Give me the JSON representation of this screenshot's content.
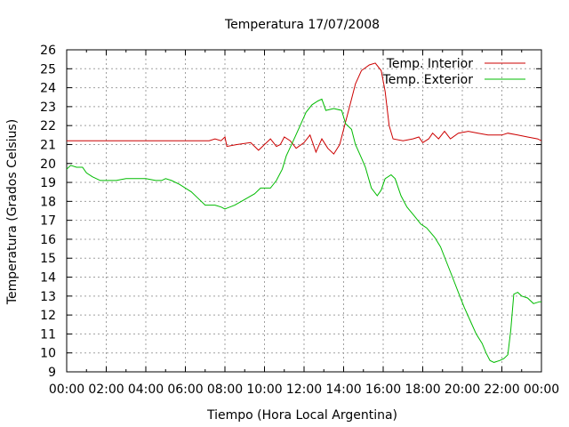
{
  "chart_data": {
    "type": "line",
    "title": "Temperatura 17/07/2008",
    "xlabel": "Tiempo (Hora Local Argentina)",
    "ylabel": "Temperatura (Grados Celsius)",
    "xlim": [
      0,
      24
    ],
    "ylim": [
      9,
      26
    ],
    "x_ticks": [
      "00:00",
      "02:00",
      "04:00",
      "06:00",
      "08:00",
      "10:00",
      "12:00",
      "14:00",
      "16:00",
      "18:00",
      "20:00",
      "22:00",
      "00:00"
    ],
    "y_ticks": [
      "9",
      "10",
      "11",
      "12",
      "13",
      "14",
      "15",
      "16",
      "17",
      "18",
      "19",
      "20",
      "21",
      "22",
      "23",
      "24",
      "25",
      "26"
    ],
    "grid": true,
    "legend_position": "top-right",
    "series": [
      {
        "name": "Temp. Interior",
        "color": "#cc0000",
        "points": [
          [
            0,
            21.2
          ],
          [
            2,
            21.2
          ],
          [
            4,
            21.2
          ],
          [
            6,
            21.2
          ],
          [
            7.2,
            21.2
          ],
          [
            7.5,
            21.3
          ],
          [
            7.8,
            21.2
          ],
          [
            8.0,
            21.4
          ],
          [
            8.1,
            20.9
          ],
          [
            8.6,
            21.0
          ],
          [
            9.3,
            21.1
          ],
          [
            9.7,
            20.7
          ],
          [
            10.0,
            21.0
          ],
          [
            10.3,
            21.3
          ],
          [
            10.6,
            20.9
          ],
          [
            10.8,
            21.0
          ],
          [
            11.0,
            21.4
          ],
          [
            11.3,
            21.2
          ],
          [
            11.6,
            20.8
          ],
          [
            12.0,
            21.1
          ],
          [
            12.3,
            21.5
          ],
          [
            12.6,
            20.6
          ],
          [
            12.9,
            21.3
          ],
          [
            13.2,
            20.8
          ],
          [
            13.5,
            20.5
          ],
          [
            13.8,
            21.0
          ],
          [
            14.0,
            21.8
          ],
          [
            14.3,
            23.0
          ],
          [
            14.6,
            24.2
          ],
          [
            14.9,
            24.9
          ],
          [
            15.3,
            25.2
          ],
          [
            15.6,
            25.3
          ],
          [
            15.9,
            24.9
          ],
          [
            16.1,
            23.8
          ],
          [
            16.3,
            22.0
          ],
          [
            16.5,
            21.3
          ],
          [
            17.0,
            21.2
          ],
          [
            17.5,
            21.3
          ],
          [
            17.8,
            21.4
          ],
          [
            18.0,
            21.1
          ],
          [
            18.3,
            21.3
          ],
          [
            18.5,
            21.6
          ],
          [
            18.8,
            21.3
          ],
          [
            19.1,
            21.7
          ],
          [
            19.4,
            21.3
          ],
          [
            19.8,
            21.6
          ],
          [
            20.3,
            21.7
          ],
          [
            20.8,
            21.6
          ],
          [
            21.3,
            21.5
          ],
          [
            22.0,
            21.5
          ],
          [
            22.3,
            21.6
          ],
          [
            22.8,
            21.5
          ],
          [
            23.3,
            21.4
          ],
          [
            23.8,
            21.3
          ],
          [
            24,
            21.2
          ]
        ]
      },
      {
        "name": "Temp. Exterior",
        "color": "#00bb00",
        "points": [
          [
            0,
            19.7
          ],
          [
            0.2,
            19.9
          ],
          [
            0.5,
            19.8
          ],
          [
            0.8,
            19.8
          ],
          [
            1.0,
            19.5
          ],
          [
            1.3,
            19.3
          ],
          [
            1.7,
            19.1
          ],
          [
            2.0,
            19.1
          ],
          [
            2.5,
            19.1
          ],
          [
            3.0,
            19.2
          ],
          [
            3.5,
            19.2
          ],
          [
            4.0,
            19.2
          ],
          [
            4.5,
            19.1
          ],
          [
            4.8,
            19.1
          ],
          [
            5.0,
            19.2
          ],
          [
            5.3,
            19.1
          ],
          [
            5.7,
            18.9
          ],
          [
            6.0,
            18.7
          ],
          [
            6.3,
            18.5
          ],
          [
            6.7,
            18.1
          ],
          [
            7.0,
            17.8
          ],
          [
            7.5,
            17.8
          ],
          [
            7.8,
            17.7
          ],
          [
            8.0,
            17.6
          ],
          [
            8.5,
            17.8
          ],
          [
            9.0,
            18.1
          ],
          [
            9.5,
            18.4
          ],
          [
            9.8,
            18.7
          ],
          [
            10.3,
            18.7
          ],
          [
            10.6,
            19.1
          ],
          [
            10.9,
            19.7
          ],
          [
            11.1,
            20.4
          ],
          [
            11.5,
            21.3
          ],
          [
            11.8,
            22.0
          ],
          [
            12.1,
            22.7
          ],
          [
            12.4,
            23.1
          ],
          [
            12.7,
            23.3
          ],
          [
            12.9,
            23.4
          ],
          [
            13.1,
            22.8
          ],
          [
            13.5,
            22.9
          ],
          [
            13.9,
            22.8
          ],
          [
            14.1,
            22.1
          ],
          [
            14.4,
            21.8
          ],
          [
            14.6,
            21.0
          ],
          [
            14.9,
            20.3
          ],
          [
            15.1,
            19.8
          ],
          [
            15.4,
            18.7
          ],
          [
            15.7,
            18.3
          ],
          [
            15.9,
            18.6
          ],
          [
            16.1,
            19.2
          ],
          [
            16.4,
            19.4
          ],
          [
            16.6,
            19.2
          ],
          [
            16.9,
            18.3
          ],
          [
            17.2,
            17.7
          ],
          [
            17.6,
            17.2
          ],
          [
            17.9,
            16.8
          ],
          [
            18.2,
            16.6
          ],
          [
            18.6,
            16.1
          ],
          [
            18.9,
            15.6
          ],
          [
            19.2,
            14.8
          ],
          [
            19.5,
            14.0
          ],
          [
            19.8,
            13.2
          ],
          [
            20.1,
            12.4
          ],
          [
            20.4,
            11.7
          ],
          [
            20.7,
            11.0
          ],
          [
            21.0,
            10.5
          ],
          [
            21.2,
            10.0
          ],
          [
            21.4,
            9.6
          ],
          [
            21.6,
            9.5
          ],
          [
            21.9,
            9.6
          ],
          [
            22.1,
            9.7
          ],
          [
            22.3,
            9.9
          ],
          [
            22.45,
            11.2
          ],
          [
            22.6,
            13.1
          ],
          [
            22.8,
            13.2
          ],
          [
            23.0,
            13.0
          ],
          [
            23.3,
            12.9
          ],
          [
            23.6,
            12.6
          ],
          [
            23.9,
            12.7
          ],
          [
            24,
            12.7
          ]
        ]
      }
    ]
  }
}
